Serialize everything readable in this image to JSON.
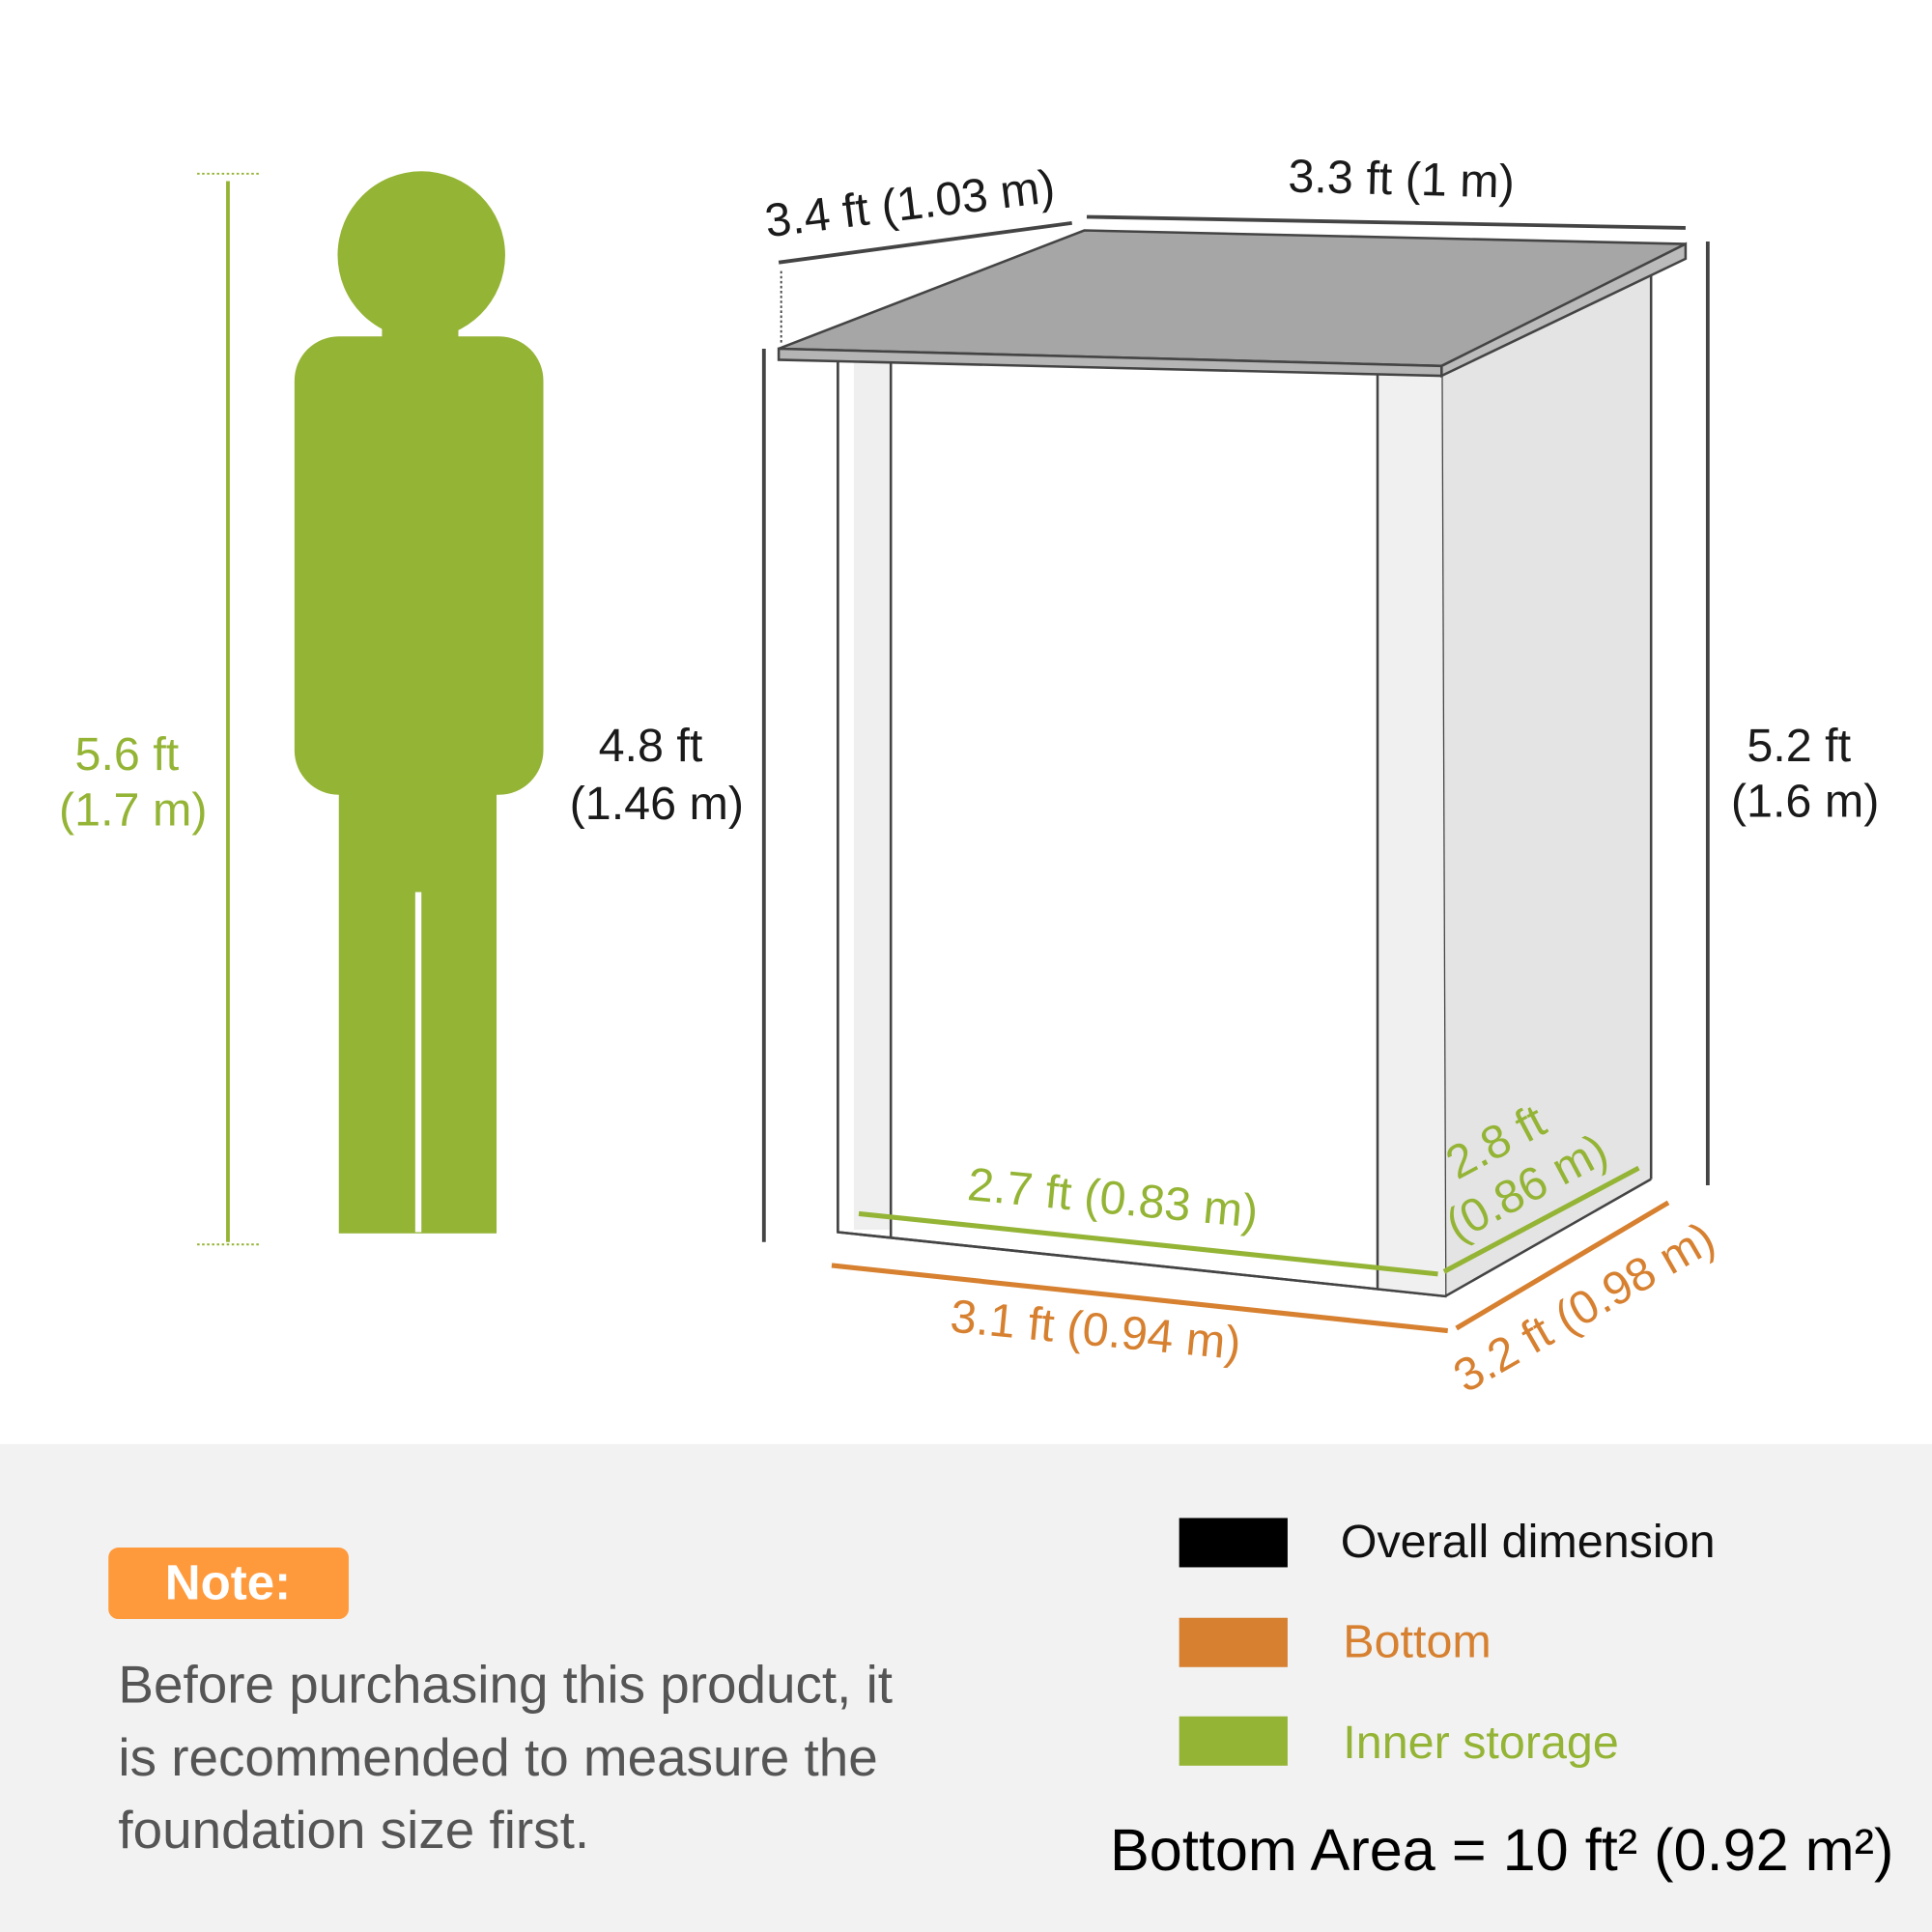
{
  "colors": {
    "overall": "#000000",
    "bottom": "#d68030",
    "inner": "#94b435",
    "note_bg": "#ff9a3c",
    "panel_bg": "#f2f2f2"
  },
  "person": {
    "height_ft": "5.6 ft",
    "height_m": "(1.7 m)"
  },
  "shed": {
    "depth_top": "3.4 ft (1.03 m)",
    "width_top": "3.3 ft (1 m)",
    "front_height_ft": "4.8 ft",
    "front_height_m": "(1.46 m)",
    "back_height_ft": "5.2 ft",
    "back_height_m": "(1.6 m)",
    "inner_width": "2.7 ft (0.83 m)",
    "inner_depth_ft": "2.8 ft",
    "inner_depth_m": "(0.86 m)",
    "bottom_width": "3.1 ft (0.94 m)",
    "bottom_depth": "3.2 ft (0.98 m)"
  },
  "note": {
    "label": "Note:",
    "lines": [
      "Before purchasing this product, it",
      "is recommended to measure the",
      "foundation size first."
    ]
  },
  "legend": [
    {
      "label": "Overall dimension",
      "color": "#000000"
    },
    {
      "label": "Bottom",
      "color": "#d68030"
    },
    {
      "label": "Inner storage",
      "color": "#94b435"
    }
  ],
  "bottom_area": "Bottom Area = 10 ft² (0.92 m²)"
}
